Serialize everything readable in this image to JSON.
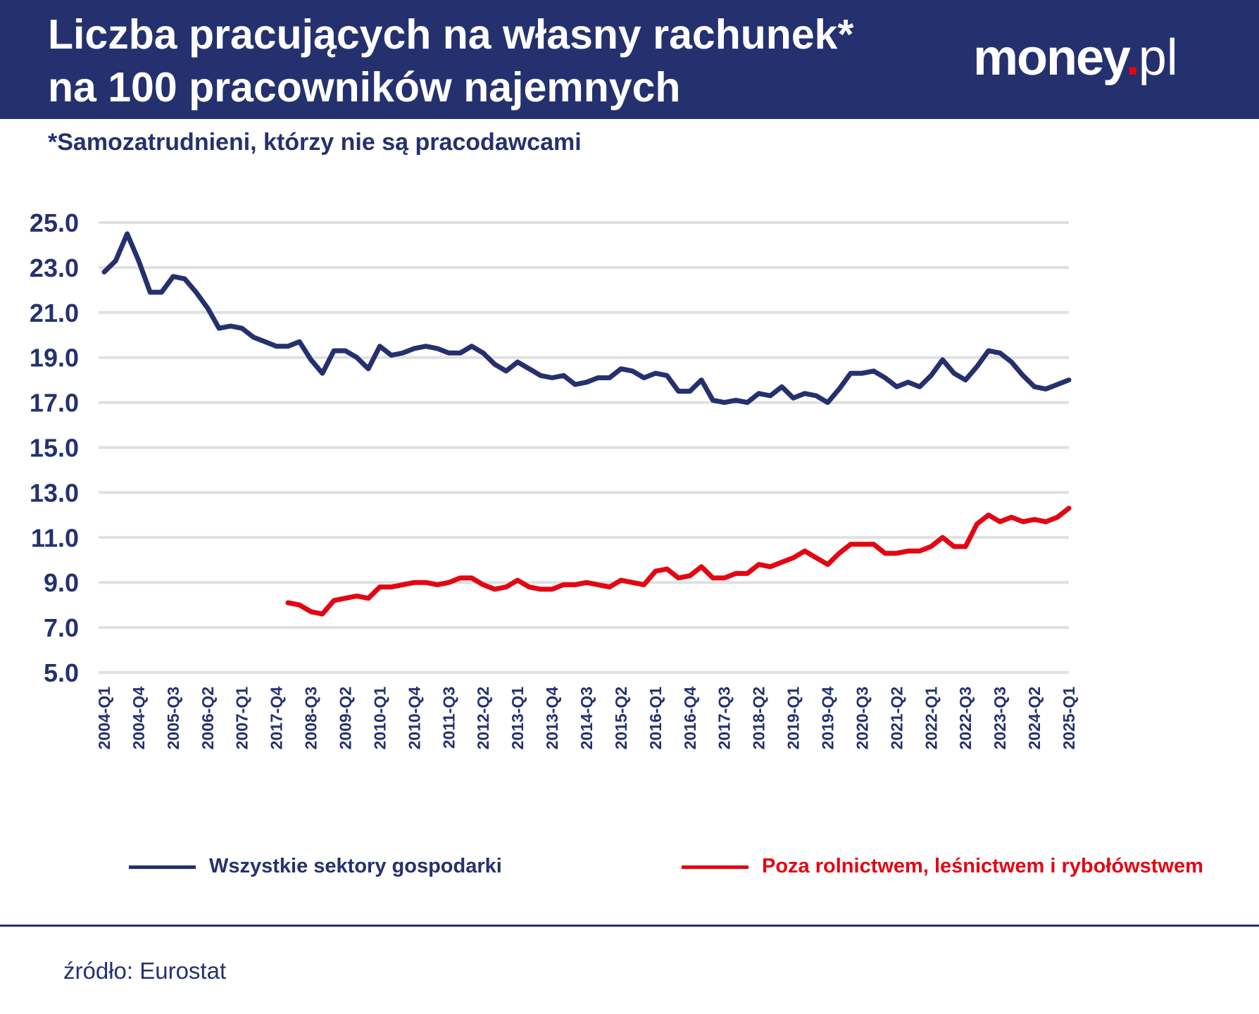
{
  "header": {
    "title_line1": "Liczba pracujących na własny rachunek*",
    "title_line2": "na 100 pracowników najemnych",
    "logo": {
      "brand": "money",
      "dot": ".",
      "suffix": "pl"
    }
  },
  "subtitle": "*Samozatrudnieni, którzy nie są pracodawcami",
  "source": "źródło: Eurostat",
  "colors": {
    "header_bg": "#25316e",
    "series_all": "#25316e",
    "series_nonagri": "#e30613",
    "grid": "#e0e0e0",
    "accent": "#e30613"
  },
  "chart_data": {
    "type": "line",
    "title": "",
    "xlabel": "",
    "ylabel": "",
    "ylim": [
      5,
      25
    ],
    "yticks": [
      "25.0",
      "23.0",
      "21.0",
      "19.0",
      "17.0",
      "15.0",
      "13.0",
      "11.0",
      "9.0",
      "7.0",
      "5.0"
    ],
    "grid": true,
    "legend_position": "bottom",
    "xtick_labels": [
      "2004-Q1",
      "2004-Q4",
      "2005-Q3",
      "2006-Q2",
      "2007-Q1",
      "2017-Q4",
      "2008-Q3",
      "2009-Q2",
      "2010-Q1",
      "2010-Q4",
      "2011-Q3",
      "2012-Q2",
      "2013-Q1",
      "2013-Q4",
      "2014-Q3",
      "2015-Q2",
      "2016-Q1",
      "2016-Q4",
      "2017-Q3",
      "2018-Q2",
      "2019-Q1",
      "2019-Q4",
      "2020-Q3",
      "2021-Q2",
      "2022-Q1",
      "2022-Q3",
      "2023-Q3",
      "2024-Q2",
      "2025-Q1"
    ],
    "series": [
      {
        "name": "Wszystkie sektory gospodarki",
        "color": "#25316e",
        "start_index": 0,
        "values": [
          22.8,
          23.3,
          24.5,
          23.3,
          21.9,
          21.9,
          22.6,
          22.5,
          21.9,
          21.2,
          20.3,
          20.4,
          20.3,
          19.9,
          19.7,
          19.5,
          19.5,
          19.7,
          18.9,
          18.3,
          19.3,
          19.3,
          19.0,
          18.5,
          19.5,
          19.1,
          19.2,
          19.4,
          19.5,
          19.4,
          19.2,
          19.2,
          19.5,
          19.2,
          18.7,
          18.4,
          18.8,
          18.5,
          18.2,
          18.1,
          18.2,
          17.8,
          17.9,
          18.1,
          18.1,
          18.5,
          18.4,
          18.1,
          18.3,
          18.2,
          17.5,
          17.5,
          18.0,
          17.1,
          17.0,
          17.1,
          17.0,
          17.4,
          17.3,
          17.7,
          17.2,
          17.4,
          17.3,
          17.0,
          17.6,
          18.3,
          18.3,
          18.4,
          18.1,
          17.7,
          17.9,
          17.7,
          18.2,
          18.9,
          18.3,
          18.0,
          18.6,
          19.3,
          19.2,
          18.8,
          18.2,
          17.7,
          17.6,
          17.8,
          18.0
        ]
      },
      {
        "name": "Poza rolnictwem, leśnictwem i rybołówstwem",
        "color": "#e30613",
        "start_index": 16,
        "values": [
          8.1,
          8.0,
          7.7,
          7.6,
          8.2,
          8.3,
          8.4,
          8.3,
          8.8,
          8.8,
          8.9,
          9.0,
          9.0,
          8.9,
          9.0,
          9.2,
          9.2,
          8.9,
          8.7,
          8.8,
          9.1,
          8.8,
          8.7,
          8.7,
          8.9,
          8.9,
          9.0,
          8.9,
          8.8,
          9.1,
          9.0,
          8.9,
          9.5,
          9.6,
          9.2,
          9.3,
          9.7,
          9.2,
          9.2,
          9.4,
          9.4,
          9.8,
          9.7,
          9.9,
          10.1,
          10.4,
          10.1,
          9.8,
          10.3,
          10.7,
          10.7,
          10.7,
          10.3,
          10.3,
          10.4,
          10.4,
          10.6,
          11.0,
          10.6,
          10.6,
          11.6,
          12.0,
          11.7,
          11.9,
          11.7,
          11.8,
          11.7,
          11.9,
          12.3
        ]
      }
    ]
  }
}
